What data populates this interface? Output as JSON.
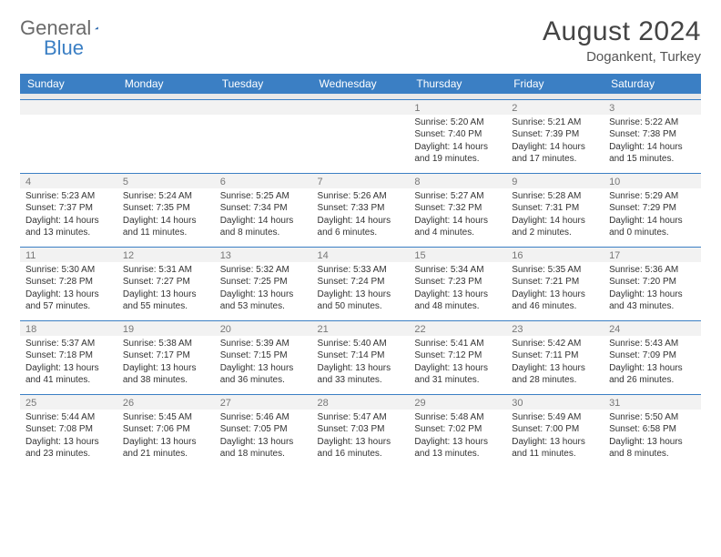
{
  "brand": {
    "word1": "General",
    "word2": "Blue"
  },
  "title": "August 2024",
  "location": "Dogankent, Turkey",
  "colors": {
    "accent": "#3b7fc4",
    "header_text": "#ffffff",
    "daynum": "#777777",
    "body_text": "#333333",
    "row_divider": "#3b7fc4",
    "sep_bg": "#e9e9e9",
    "daynum_bg": "#f2f2f2",
    "page_bg": "#ffffff"
  },
  "dow": [
    "Sunday",
    "Monday",
    "Tuesday",
    "Wednesday",
    "Thursday",
    "Friday",
    "Saturday"
  ],
  "weeks": [
    [
      null,
      null,
      null,
      null,
      {
        "n": "1",
        "r": "Sunrise: 5:20 AM",
        "s": "Sunset: 7:40 PM",
        "d1": "Daylight: 14 hours",
        "d2": "and 19 minutes."
      },
      {
        "n": "2",
        "r": "Sunrise: 5:21 AM",
        "s": "Sunset: 7:39 PM",
        "d1": "Daylight: 14 hours",
        "d2": "and 17 minutes."
      },
      {
        "n": "3",
        "r": "Sunrise: 5:22 AM",
        "s": "Sunset: 7:38 PM",
        "d1": "Daylight: 14 hours",
        "d2": "and 15 minutes."
      }
    ],
    [
      {
        "n": "4",
        "r": "Sunrise: 5:23 AM",
        "s": "Sunset: 7:37 PM",
        "d1": "Daylight: 14 hours",
        "d2": "and 13 minutes."
      },
      {
        "n": "5",
        "r": "Sunrise: 5:24 AM",
        "s": "Sunset: 7:35 PM",
        "d1": "Daylight: 14 hours",
        "d2": "and 11 minutes."
      },
      {
        "n": "6",
        "r": "Sunrise: 5:25 AM",
        "s": "Sunset: 7:34 PM",
        "d1": "Daylight: 14 hours",
        "d2": "and 8 minutes."
      },
      {
        "n": "7",
        "r": "Sunrise: 5:26 AM",
        "s": "Sunset: 7:33 PM",
        "d1": "Daylight: 14 hours",
        "d2": "and 6 minutes."
      },
      {
        "n": "8",
        "r": "Sunrise: 5:27 AM",
        "s": "Sunset: 7:32 PM",
        "d1": "Daylight: 14 hours",
        "d2": "and 4 minutes."
      },
      {
        "n": "9",
        "r": "Sunrise: 5:28 AM",
        "s": "Sunset: 7:31 PM",
        "d1": "Daylight: 14 hours",
        "d2": "and 2 minutes."
      },
      {
        "n": "10",
        "r": "Sunrise: 5:29 AM",
        "s": "Sunset: 7:29 PM",
        "d1": "Daylight: 14 hours",
        "d2": "and 0 minutes."
      }
    ],
    [
      {
        "n": "11",
        "r": "Sunrise: 5:30 AM",
        "s": "Sunset: 7:28 PM",
        "d1": "Daylight: 13 hours",
        "d2": "and 57 minutes."
      },
      {
        "n": "12",
        "r": "Sunrise: 5:31 AM",
        "s": "Sunset: 7:27 PM",
        "d1": "Daylight: 13 hours",
        "d2": "and 55 minutes."
      },
      {
        "n": "13",
        "r": "Sunrise: 5:32 AM",
        "s": "Sunset: 7:25 PM",
        "d1": "Daylight: 13 hours",
        "d2": "and 53 minutes."
      },
      {
        "n": "14",
        "r": "Sunrise: 5:33 AM",
        "s": "Sunset: 7:24 PM",
        "d1": "Daylight: 13 hours",
        "d2": "and 50 minutes."
      },
      {
        "n": "15",
        "r": "Sunrise: 5:34 AM",
        "s": "Sunset: 7:23 PM",
        "d1": "Daylight: 13 hours",
        "d2": "and 48 minutes."
      },
      {
        "n": "16",
        "r": "Sunrise: 5:35 AM",
        "s": "Sunset: 7:21 PM",
        "d1": "Daylight: 13 hours",
        "d2": "and 46 minutes."
      },
      {
        "n": "17",
        "r": "Sunrise: 5:36 AM",
        "s": "Sunset: 7:20 PM",
        "d1": "Daylight: 13 hours",
        "d2": "and 43 minutes."
      }
    ],
    [
      {
        "n": "18",
        "r": "Sunrise: 5:37 AM",
        "s": "Sunset: 7:18 PM",
        "d1": "Daylight: 13 hours",
        "d2": "and 41 minutes."
      },
      {
        "n": "19",
        "r": "Sunrise: 5:38 AM",
        "s": "Sunset: 7:17 PM",
        "d1": "Daylight: 13 hours",
        "d2": "and 38 minutes."
      },
      {
        "n": "20",
        "r": "Sunrise: 5:39 AM",
        "s": "Sunset: 7:15 PM",
        "d1": "Daylight: 13 hours",
        "d2": "and 36 minutes."
      },
      {
        "n": "21",
        "r": "Sunrise: 5:40 AM",
        "s": "Sunset: 7:14 PM",
        "d1": "Daylight: 13 hours",
        "d2": "and 33 minutes."
      },
      {
        "n": "22",
        "r": "Sunrise: 5:41 AM",
        "s": "Sunset: 7:12 PM",
        "d1": "Daylight: 13 hours",
        "d2": "and 31 minutes."
      },
      {
        "n": "23",
        "r": "Sunrise: 5:42 AM",
        "s": "Sunset: 7:11 PM",
        "d1": "Daylight: 13 hours",
        "d2": "and 28 minutes."
      },
      {
        "n": "24",
        "r": "Sunrise: 5:43 AM",
        "s": "Sunset: 7:09 PM",
        "d1": "Daylight: 13 hours",
        "d2": "and 26 minutes."
      }
    ],
    [
      {
        "n": "25",
        "r": "Sunrise: 5:44 AM",
        "s": "Sunset: 7:08 PM",
        "d1": "Daylight: 13 hours",
        "d2": "and 23 minutes."
      },
      {
        "n": "26",
        "r": "Sunrise: 5:45 AM",
        "s": "Sunset: 7:06 PM",
        "d1": "Daylight: 13 hours",
        "d2": "and 21 minutes."
      },
      {
        "n": "27",
        "r": "Sunrise: 5:46 AM",
        "s": "Sunset: 7:05 PM",
        "d1": "Daylight: 13 hours",
        "d2": "and 18 minutes."
      },
      {
        "n": "28",
        "r": "Sunrise: 5:47 AM",
        "s": "Sunset: 7:03 PM",
        "d1": "Daylight: 13 hours",
        "d2": "and 16 minutes."
      },
      {
        "n": "29",
        "r": "Sunrise: 5:48 AM",
        "s": "Sunset: 7:02 PM",
        "d1": "Daylight: 13 hours",
        "d2": "and 13 minutes."
      },
      {
        "n": "30",
        "r": "Sunrise: 5:49 AM",
        "s": "Sunset: 7:00 PM",
        "d1": "Daylight: 13 hours",
        "d2": "and 11 minutes."
      },
      {
        "n": "31",
        "r": "Sunrise: 5:50 AM",
        "s": "Sunset: 6:58 PM",
        "d1": "Daylight: 13 hours",
        "d2": "and 8 minutes."
      }
    ]
  ]
}
